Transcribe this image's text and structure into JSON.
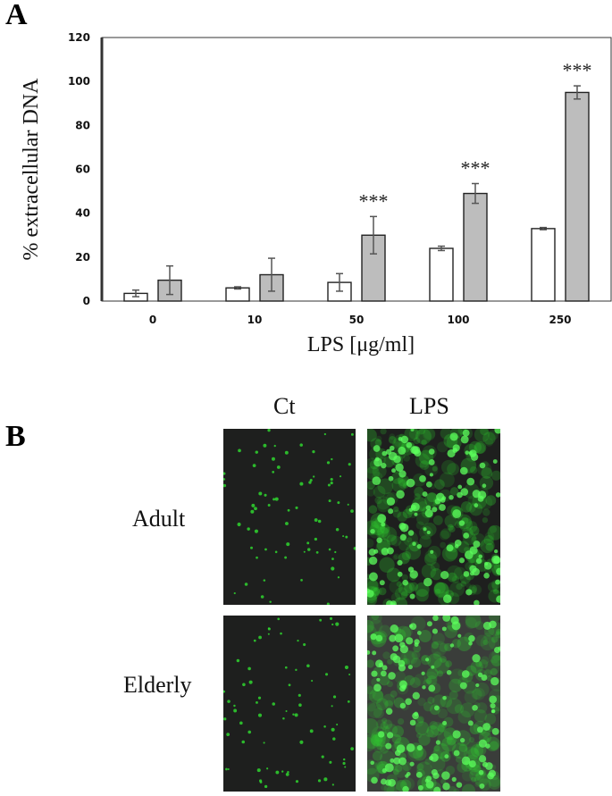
{
  "panels": {
    "a_label": "A",
    "b_label": "B"
  },
  "chart_data": {
    "type": "bar",
    "categories": [
      "0",
      "10",
      "50",
      "100",
      "250"
    ],
    "series": [
      {
        "values": [
          3.5,
          6,
          8.5,
          24,
          33
        ],
        "errors": [
          1.5,
          0.5,
          4,
          1,
          0.5
        ],
        "color": "#ffffff"
      },
      {
        "values": [
          9.5,
          12,
          30,
          49,
          95
        ],
        "errors": [
          6.5,
          7.5,
          8.5,
          4.5,
          3
        ],
        "color": "#bdbdbd"
      }
    ],
    "significance": [
      "",
      "",
      "***",
      "***",
      "***"
    ],
    "ylim": [
      0,
      120
    ],
    "yticks": [
      "0",
      "20",
      "40",
      "60",
      "80",
      "100",
      "120"
    ],
    "ylabel": "% extracellular DNA",
    "xlabel": "LPS [μg/ml]",
    "grid": false
  },
  "microscopy": {
    "columns": [
      "Ct",
      "LPS"
    ],
    "rows": [
      "Adult",
      "Elderly"
    ],
    "background": "#1e1f1e",
    "fluorescence": "#2fd62f",
    "stain_density": {
      "Ct": "sparse",
      "LPS": "dense"
    }
  }
}
